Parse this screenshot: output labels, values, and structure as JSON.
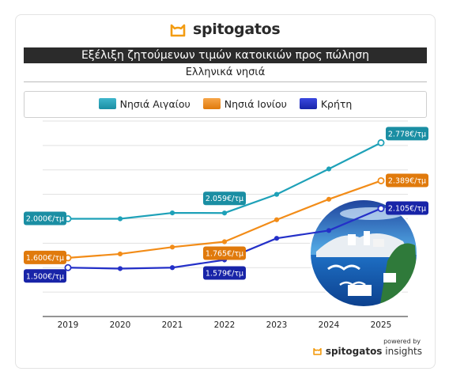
{
  "brand": {
    "name": "spitogatos",
    "icon": "cat-logo-icon",
    "accent": "#f39c12"
  },
  "title": "Εξέλιξη ζητούμενων τιμών κατοικιών προς πώληση",
  "subtitle": "Ελληνικά νησιά",
  "footer": {
    "powered_by": "powered by",
    "brand": "spitogatos",
    "brand_suffix": "insights"
  },
  "chart_data": {
    "type": "line",
    "title": "Εξέλιξη ζητούμενων τιμών κατοικιών προς πώληση",
    "subtitle": "Ελληνικά νησιά",
    "categories": [
      "2019",
      "2020",
      "2021",
      "2022",
      "2023",
      "2024",
      "2025"
    ],
    "ylim": [
      1000,
      3000
    ],
    "grid": true,
    "legend_position": "top",
    "series": [
      {
        "name": "Νησιά Αιγαίου",
        "color": "#1ea1b8",
        "values": [
          2000,
          2000,
          2060,
          2059,
          2250,
          2510,
          2778
        ],
        "labels": [
          {
            "index": 0,
            "text": "2.000€/τμ"
          },
          {
            "index": 3,
            "text": "2.059€/τμ"
          },
          {
            "index": 6,
            "text": "2.778€/τμ"
          }
        ]
      },
      {
        "name": "Νησιά Ιονίου",
        "color": "#f28c18",
        "values": [
          1600,
          1640,
          1710,
          1765,
          1990,
          2200,
          2389
        ],
        "labels": [
          {
            "index": 0,
            "text": "1.600€/τμ"
          },
          {
            "index": 3,
            "text": "1.765€/τμ"
          },
          {
            "index": 6,
            "text": "2.389€/τμ"
          }
        ]
      },
      {
        "name": "Κρήτη",
        "color": "#2430c8",
        "values": [
          1500,
          1490,
          1500,
          1579,
          1800,
          1880,
          2105
        ],
        "labels": [
          {
            "index": 0,
            "text": "1.500€/τμ"
          },
          {
            "index": 3,
            "text": "1.579€/τμ"
          },
          {
            "index": 6,
            "text": "2.105€/τμ"
          }
        ]
      }
    ]
  }
}
